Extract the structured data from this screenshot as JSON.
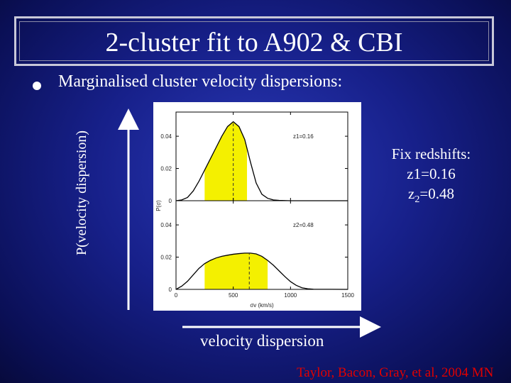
{
  "slide": {
    "title": "2-cluster fit to A902 & CBI",
    "bullet": "Marginalised cluster velocity dispersions:",
    "y_label": "P(velocity dispersion)",
    "x_label": "velocity dispersion",
    "side_note": {
      "line1": "Fix redshifts:",
      "line2": "z1=0.16",
      "line3_main": "z",
      "line3_sub": "2",
      "line3_rest": "=0.48"
    },
    "footer": {
      "date": "",
      "center": "",
      "page": ""
    },
    "citation": "Taylor, Bacon, Gray, et al, 2004 MN"
  },
  "colors": {
    "background": "#17208a",
    "highlight": "#f4f000",
    "citation": "#e00000"
  },
  "chart_data": [
    {
      "type": "line",
      "title": "",
      "panel_label": "z1=0.16",
      "xlabel": "σv (km/s)",
      "ylabel": "P(σ)",
      "xlim": [
        0,
        1500
      ],
      "ylim": [
        0,
        0.055
      ],
      "xticks": [
        0,
        500,
        1000,
        1500
      ],
      "yticks": [
        0,
        0.02,
        0.04
      ],
      "ytick_labels": [
        "0",
        "0.02",
        "0.04"
      ],
      "x": [
        0,
        50,
        100,
        150,
        200,
        250,
        300,
        350,
        400,
        450,
        500,
        550,
        600,
        650,
        700,
        750,
        800,
        850,
        900,
        950,
        1000,
        1500
      ],
      "y": [
        0,
        0.0005,
        0.002,
        0.006,
        0.012,
        0.019,
        0.026,
        0.033,
        0.04,
        0.046,
        0.049,
        0.046,
        0.038,
        0.024,
        0.011,
        0.004,
        0.0015,
        0.0005,
        0.0002,
        0.0001,
        0,
        0
      ],
      "shaded_interval": [
        250,
        620
      ],
      "peak_x": 500
    },
    {
      "type": "line",
      "title": "",
      "panel_label": "z2=0.48",
      "xlabel": "σv (km/s)",
      "ylabel": "P(σ)",
      "xlim": [
        0,
        1500
      ],
      "ylim": [
        0,
        0.055
      ],
      "xticks": [
        0,
        500,
        1000,
        1500
      ],
      "xtick_labels": [
        "0",
        "500",
        "1000",
        "1500"
      ],
      "yticks": [
        0,
        0.02,
        0.04
      ],
      "ytick_labels": [
        "0",
        "0.02",
        "0.04"
      ],
      "x": [
        0,
        50,
        100,
        150,
        200,
        250,
        300,
        350,
        400,
        450,
        500,
        550,
        600,
        650,
        700,
        750,
        800,
        850,
        900,
        950,
        1000,
        1050,
        1100,
        1150,
        1200,
        1500
      ],
      "y": [
        0,
        0.002,
        0.005,
        0.009,
        0.013,
        0.016,
        0.018,
        0.0195,
        0.0205,
        0.0212,
        0.0218,
        0.0222,
        0.0225,
        0.0225,
        0.022,
        0.0205,
        0.018,
        0.015,
        0.0115,
        0.008,
        0.0048,
        0.0025,
        0.001,
        0.0004,
        0.0001,
        0
      ],
      "shaded_interval": [
        250,
        800
      ],
      "peak_x": 640
    }
  ]
}
